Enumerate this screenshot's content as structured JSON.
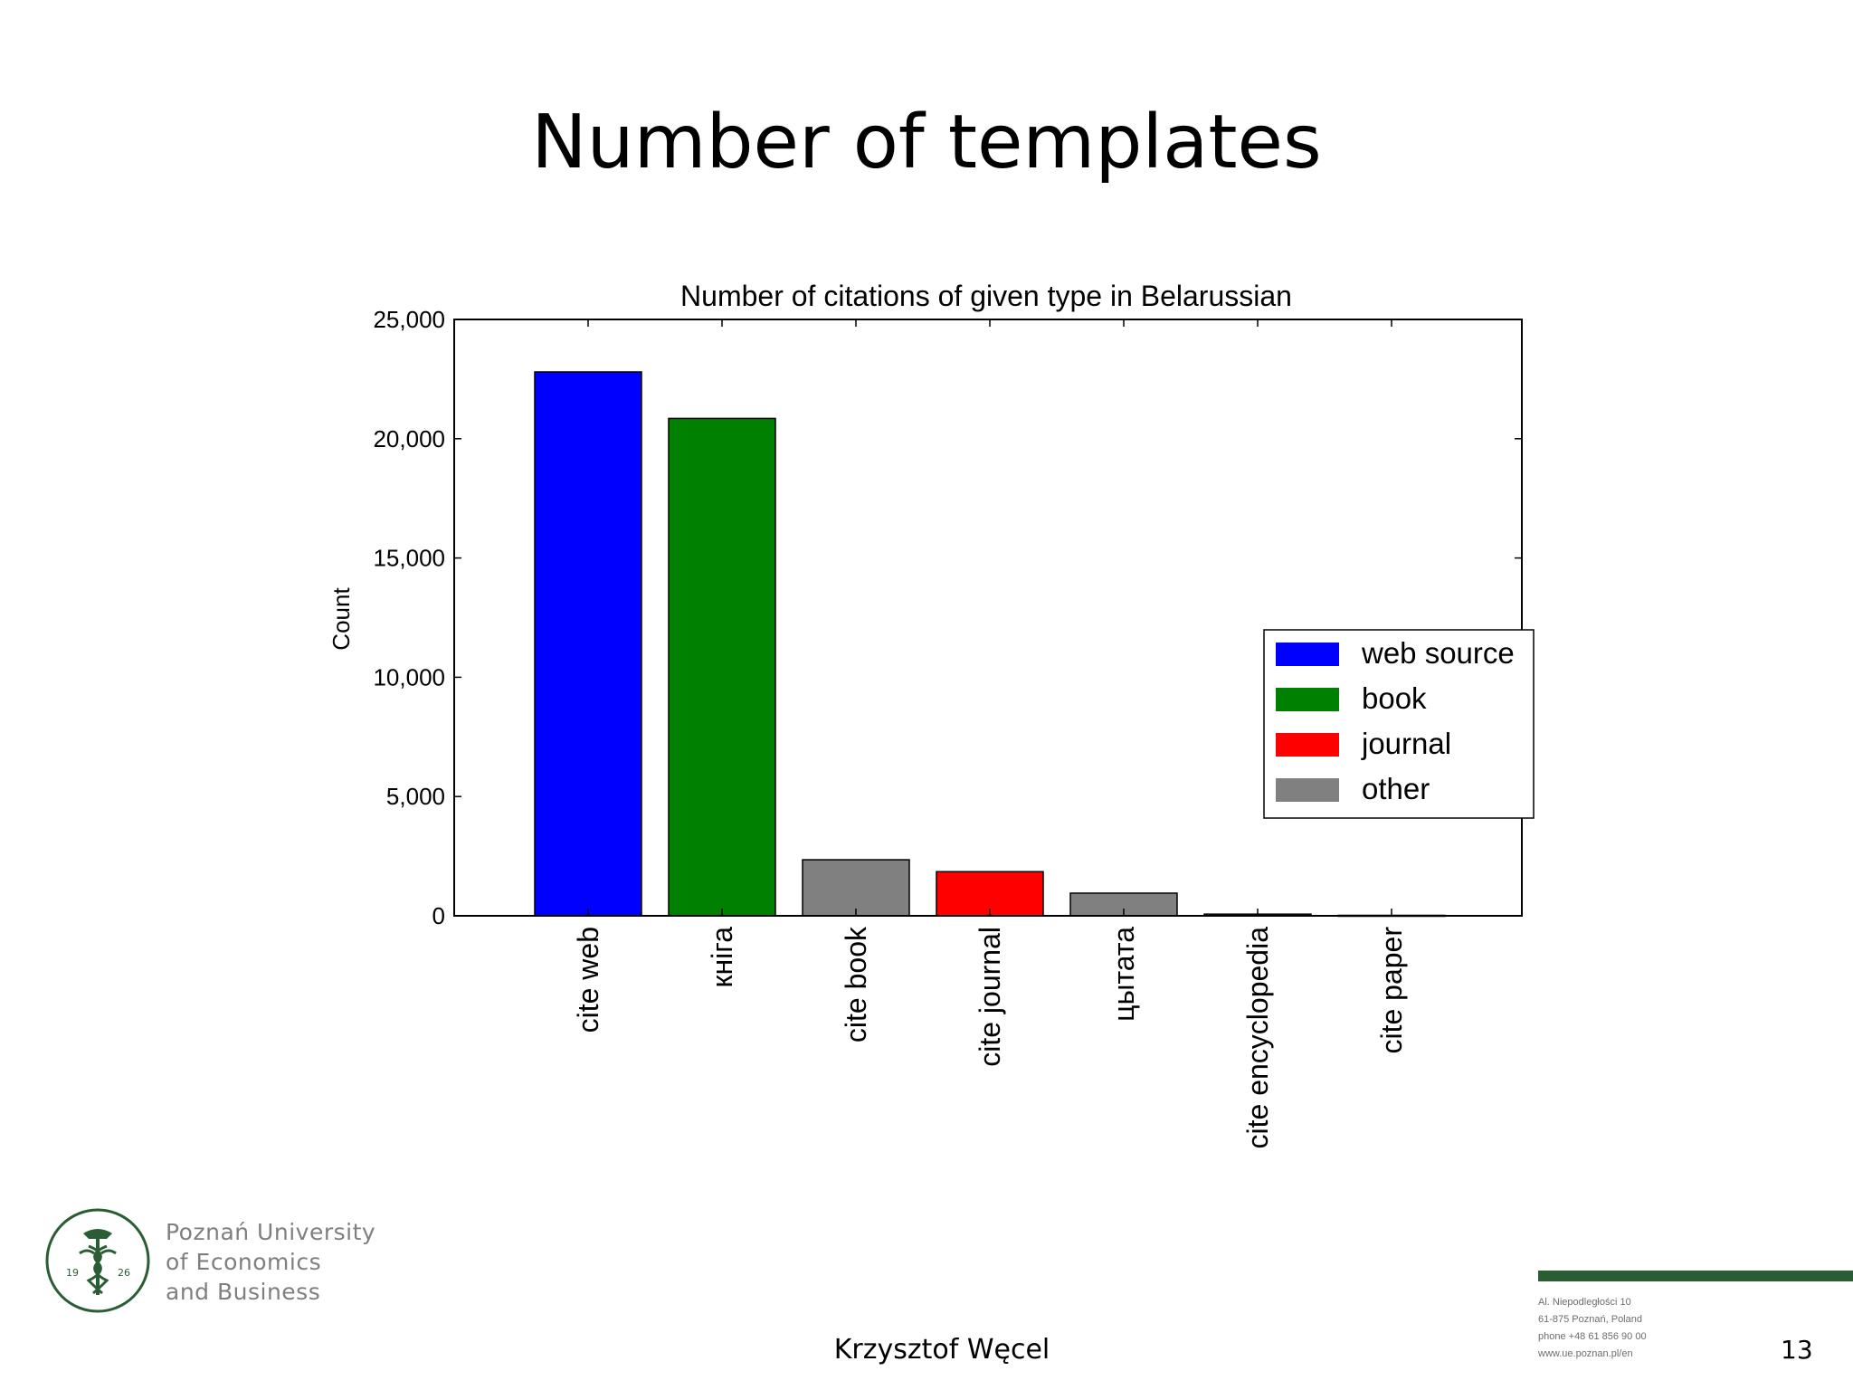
{
  "slide": {
    "title": "Number of templates",
    "author": "Krzysztof Węcel",
    "page_number": "13"
  },
  "university": {
    "line1": "Poznań University",
    "line2": "of Economics",
    "line3": "and Business",
    "logo_year_left": "19",
    "logo_year_right": "26",
    "accent_color": "#2b5d34"
  },
  "address": {
    "line1": "Al. Niepodległości 10",
    "line2": "61-875 Poznań, Poland",
    "line3": "phone +48 61 856 90 00",
    "line4": "www.ue.poznan.pl/en"
  },
  "chart_data": {
    "type": "bar",
    "title": "Number of citations of given type in Belarussian",
    "xlabel": "",
    "ylabel": "Count",
    "ylim": [
      0,
      25000
    ],
    "yticks": [
      0,
      5000,
      10000,
      15000,
      20000,
      25000
    ],
    "ytick_labels": [
      "0",
      "5,000",
      "10,000",
      "15,000",
      "20,000",
      "25,000"
    ],
    "categories": [
      "cite web",
      "кніга",
      "cite book",
      "cite journal",
      "цытата",
      "cite encyclopedia",
      "cite paper"
    ],
    "values": [
      22800,
      20850,
      2350,
      1850,
      950,
      70,
      20
    ],
    "bar_types": [
      "web source",
      "book",
      "other",
      "journal",
      "other",
      "other",
      "other"
    ],
    "legend": {
      "placement": "center-right",
      "entries": [
        {
          "label": "web source",
          "color": "#0000ff"
        },
        {
          "label": "book",
          "color": "#008000"
        },
        {
          "label": "journal",
          "color": "#ff0000"
        },
        {
          "label": "other",
          "color": "#808080"
        }
      ]
    },
    "grid": false
  }
}
